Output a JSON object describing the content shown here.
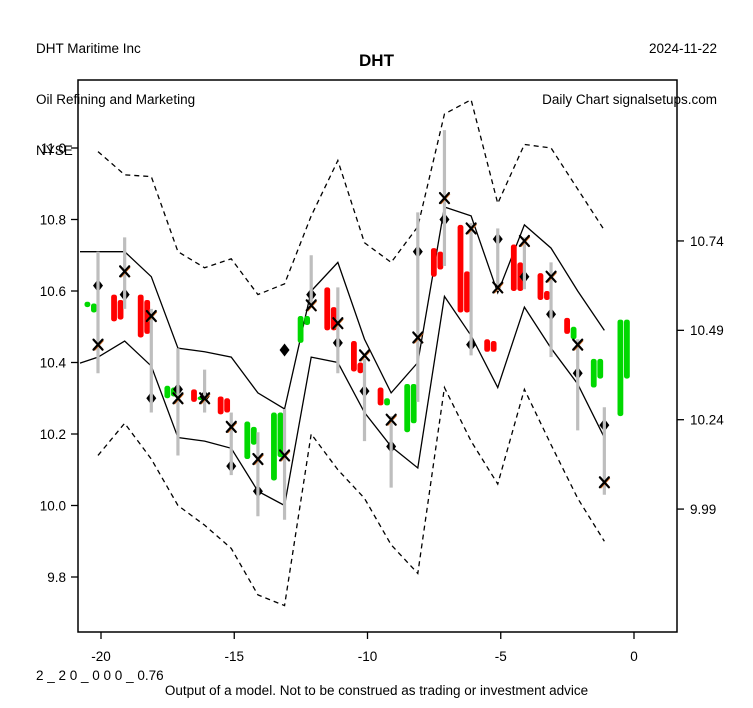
{
  "header": {
    "company": "DHT Maritime Inc",
    "industry": "Oil Refining and Marketing",
    "exchange": "NYSE",
    "date": "2024-11-22",
    "source": "Daily Chart signalsetups.com"
  },
  "title": "DHT",
  "footer": {
    "model_code": "2 _ 2 0 _ 0 0 0 _ 0.76",
    "disclaimer": "Output of a model. Not to be construed as trading or investment advice"
  },
  "colors": {
    "up_candle": "#00D800",
    "down_candle": "#FF0000",
    "wick": "#BEBEBE",
    "line": "#000000",
    "x_marker_fringe": "#D2691E",
    "background": "#FFFFFF"
  },
  "axes": {
    "left_tick_labels": [
      "9.8",
      "10.0",
      "10.2",
      "10.4",
      "10.6",
      "10.8",
      "11.0"
    ],
    "right_tick_labels": [
      "9.99",
      "10.24",
      "10.49",
      "10.74"
    ],
    "bottom_tick_labels": [
      "-20",
      "-15",
      "-10",
      "-5",
      "0"
    ]
  },
  "chart_data": {
    "type": "candlestick",
    "title": "DHT",
    "xlabel": "",
    "ylabel": "",
    "xlim": [
      -20.8,
      1.65
    ],
    "ylim": [
      9.65,
      11.19
    ],
    "grid": false,
    "legend": "none",
    "description": "Daily candlesticks with paired session bodies, gray high-low wicks, black diamond and x model markers, solid inner model band and dashed outer model band",
    "candles": [
      {
        "t": -20,
        "high": 10.71,
        "low": 10.37,
        "bodies": [
          [
            "up",
            10.57,
            10.555
          ],
          [
            "up",
            10.565,
            10.54
          ]
        ],
        "diamond": 10.615,
        "x_marker": 10.45
      },
      {
        "t": -19,
        "high": 10.75,
        "low": 10.55,
        "bodies": [
          [
            "down",
            10.59,
            10.515
          ],
          [
            "down",
            10.575,
            10.52
          ]
        ],
        "diamond": 10.59,
        "x_marker": 10.655
      },
      {
        "t": -18,
        "high": 10.55,
        "low": 10.26,
        "bodies": [
          [
            "down",
            10.59,
            10.47
          ],
          [
            "down",
            10.575,
            10.48
          ]
        ],
        "diamond": 10.3,
        "x_marker": 10.53
      },
      {
        "t": -17,
        "high": 10.44,
        "low": 10.14,
        "bodies": [
          [
            "up",
            10.335,
            10.3
          ],
          [
            "up",
            10.33,
            10.305
          ]
        ],
        "diamond": 10.325,
        "x_marker": 10.3
      },
      {
        "t": -16,
        "high": 10.38,
        "low": 10.26,
        "bodies": [
          [
            "down",
            10.325,
            10.29
          ],
          [
            "up",
            10.305,
            10.295
          ]
        ],
        "diamond": 10.305,
        "x_marker": 10.3
      },
      {
        "t": -15,
        "high": 10.26,
        "low": 10.085,
        "bodies": [
          [
            "down",
            10.305,
            10.255
          ],
          [
            "down",
            10.3,
            10.26
          ]
        ],
        "diamond": 10.11,
        "x_marker": 10.22
      },
      {
        "t": -14,
        "high": 10.205,
        "low": 9.97,
        "bodies": [
          [
            "up",
            10.235,
            10.13
          ],
          [
            "up",
            10.22,
            10.17
          ]
        ],
        "diamond": 10.04,
        "x_marker": 10.13
      },
      {
        "t": -13,
        "high": 10.27,
        "low": 9.96,
        "bodies": [
          [
            "up",
            10.26,
            10.07
          ],
          [
            "up",
            10.26,
            10.135
          ]
        ],
        "diamond": 10.435,
        "x_marker": 10.14
      },
      {
        "t": -12,
        "high": 10.7,
        "low": 10.56,
        "bodies": [
          [
            "up",
            10.53,
            10.455
          ],
          [
            "up",
            10.53,
            10.505
          ]
        ],
        "diamond": 10.59,
        "x_marker": 10.56
      },
      {
        "t": -11,
        "high": 10.61,
        "low": 10.37,
        "bodies": [
          [
            "down",
            10.61,
            10.49
          ],
          [
            "down",
            10.555,
            10.49
          ]
        ],
        "diamond": 10.455,
        "x_marker": 10.51
      },
      {
        "t": -10,
        "high": 10.41,
        "low": 10.18,
        "bodies": [
          [
            "down",
            10.46,
            10.375
          ],
          [
            "down",
            10.4,
            10.37
          ]
        ],
        "diamond": 10.32,
        "x_marker": 10.42
      },
      {
        "t": -9,
        "high": 10.25,
        "low": 10.05,
        "bodies": [
          [
            "down",
            10.33,
            10.28
          ],
          [
            "up",
            10.3,
            10.28
          ]
        ],
        "diamond": 10.165,
        "x_marker": 10.24
      },
      {
        "t": -8,
        "high": 10.82,
        "low": 10.29,
        "bodies": [
          [
            "up",
            10.34,
            10.205
          ],
          [
            "up",
            10.34,
            10.23
          ]
        ],
        "diamond": 10.71,
        "x_marker": 10.47
      },
      {
        "t": -7,
        "high": 11.05,
        "low": 10.67,
        "bodies": [
          [
            "down",
            10.72,
            10.64
          ],
          [
            "down",
            10.71,
            10.66
          ]
        ],
        "diamond": 10.8,
        "x_marker": 10.86
      },
      {
        "t": -6,
        "high": 10.79,
        "low": 10.42,
        "bodies": [
          [
            "down",
            10.785,
            10.54
          ],
          [
            "down",
            10.655,
            10.54
          ]
        ],
        "diamond": 10.45,
        "x_marker": 10.775
      },
      {
        "t": -5,
        "high": 10.775,
        "low": 10.6,
        "bodies": [
          [
            "down",
            10.465,
            10.43
          ],
          [
            "down",
            10.46,
            10.43
          ]
        ],
        "diamond": 10.745,
        "x_marker": 10.61
      },
      {
        "t": -4,
        "high": 10.75,
        "low": 10.605,
        "bodies": [
          [
            "down",
            10.73,
            10.6
          ],
          [
            "down",
            10.68,
            10.6
          ]
        ],
        "diamond": 10.64,
        "x_marker": 10.74
      },
      {
        "t": -3,
        "high": 10.68,
        "low": 10.415,
        "bodies": [
          [
            "down",
            10.65,
            10.575
          ],
          [
            "down",
            10.6,
            10.575
          ]
        ],
        "diamond": 10.535,
        "x_marker": 10.64
      },
      {
        "t": -2,
        "high": 10.465,
        "low": 10.21,
        "bodies": [
          [
            "down",
            10.525,
            10.48
          ],
          [
            "up",
            10.5,
            10.465
          ]
        ],
        "diamond": 10.37,
        "x_marker": 10.45
      },
      {
        "t": -1,
        "high": 10.275,
        "low": 10.03,
        "bodies": [
          [
            "up",
            10.41,
            10.33
          ],
          [
            "up",
            10.41,
            10.355
          ]
        ],
        "diamond": 10.225,
        "x_marker": 10.065
      },
      {
        "t": 0,
        "high": null,
        "low": null,
        "bodies": [
          [
            "up",
            10.52,
            10.25
          ],
          [
            "up",
            10.52,
            10.355
          ]
        ],
        "diamond": null,
        "x_marker": null
      }
    ],
    "bands": {
      "t": [
        -20,
        -19,
        -18,
        -17,
        -16,
        -15,
        -14,
        -13,
        -12,
        -11,
        -10,
        -9,
        -8,
        -7,
        -6,
        -5,
        -4,
        -3,
        -2,
        -1
      ],
      "outer_upper": [
        10.99,
        10.925,
        10.92,
        10.71,
        10.665,
        10.69,
        10.59,
        10.62,
        10.81,
        10.965,
        10.735,
        10.68,
        10.78,
        11.095,
        11.135,
        10.845,
        11.01,
        11.0,
        10.885,
        10.77
      ],
      "inner_upper": [
        10.71,
        10.71,
        10.64,
        10.44,
        10.43,
        10.415,
        10.315,
        10.27,
        10.6,
        10.68,
        10.465,
        10.315,
        10.4,
        10.835,
        10.81,
        10.595,
        10.785,
        10.72,
        10.6,
        10.49
      ],
      "inner_lower": [
        10.415,
        10.46,
        10.39,
        10.19,
        10.18,
        10.16,
        10.04,
        10.0,
        10.415,
        10.4,
        10.26,
        10.165,
        10.105,
        10.585,
        10.475,
        10.33,
        10.555,
        10.44,
        10.34,
        10.19
      ],
      "outer_lower": [
        10.14,
        10.23,
        10.13,
        10.0,
        9.945,
        9.88,
        9.75,
        9.72,
        10.2,
        10.1,
        10.02,
        9.89,
        9.81,
        10.33,
        10.18,
        10.06,
        10.325,
        10.17,
        10.02,
        9.9
      ]
    }
  }
}
